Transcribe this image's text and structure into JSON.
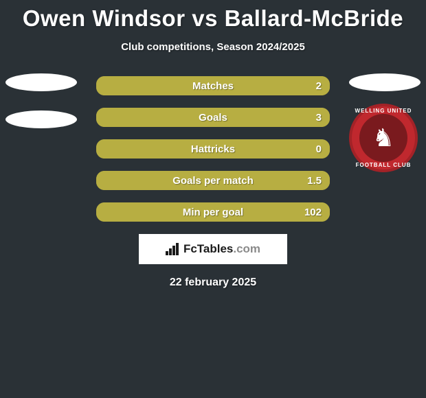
{
  "title": "Owen Windsor vs Ballard-McBride",
  "subtitle": "Club competitions, Season 2024/2025",
  "date_text": "22 february 2025",
  "brand": {
    "name_bold": "FcTables",
    "name_light": ".com"
  },
  "crest": {
    "ring_top": "WELLING UNITED",
    "ring_bottom": "FOOTBALL CLUB",
    "outer_color": "#c0282e",
    "inner_color": "#7a1a1e",
    "horse_glyph": "♞"
  },
  "colors": {
    "background": "#2a3136",
    "bar_base": "#aaa23a",
    "bar_fill": "#b7ae42",
    "text": "#ffffff"
  },
  "typography": {
    "title_fontsize": 33,
    "subtitle_fontsize": 15,
    "stat_label_fontsize": 15,
    "brand_fontsize": 17,
    "date_fontsize": 16
  },
  "layout": {
    "stat_row_width": 340,
    "stat_row_height": 28,
    "stat_row_gap": 18,
    "stat_row_radius": 12,
    "brand_box_width": 216,
    "brand_box_height": 44
  },
  "stats": [
    {
      "label": "Matches",
      "right_value": "2",
      "left_fill_pct": 100
    },
    {
      "label": "Goals",
      "right_value": "3",
      "left_fill_pct": 100
    },
    {
      "label": "Hattricks",
      "right_value": "0",
      "left_fill_pct": 100
    },
    {
      "label": "Goals per match",
      "right_value": "1.5",
      "left_fill_pct": 100
    },
    {
      "label": "Min per goal",
      "right_value": "102",
      "left_fill_pct": 100
    }
  ]
}
